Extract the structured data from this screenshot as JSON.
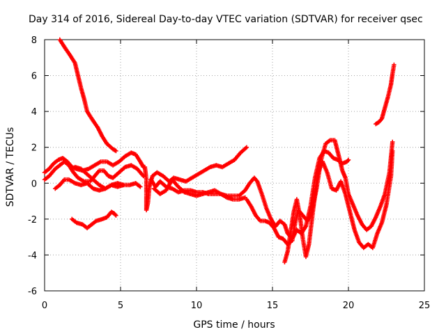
{
  "chart_data": {
    "type": "scatter",
    "title": "Day 314 of 2016, Sidereal Day-to-day VTEC variation (SDTVAR) for receiver qsec",
    "xlabel": "GPS time / hours",
    "ylabel": "SDTVAR / TECUs",
    "xlim": [
      0,
      25
    ],
    "ylim": [
      -6,
      8
    ],
    "xticks": [
      0,
      5,
      10,
      15,
      20,
      25
    ],
    "yticks": [
      -6,
      -4,
      -2,
      0,
      2,
      4,
      6,
      8
    ],
    "grid": true,
    "marker": "plus",
    "color": "#ff0000",
    "series": [
      {
        "name": "track-1",
        "points": [
          [
            1.0,
            8.0
          ],
          [
            1.3,
            7.6
          ],
          [
            1.7,
            7.1
          ],
          [
            2.0,
            6.7
          ],
          [
            2.2,
            6.0
          ],
          [
            2.4,
            5.3
          ],
          [
            2.6,
            4.7
          ],
          [
            2.8,
            4.0
          ],
          [
            3.1,
            3.6
          ],
          [
            3.5,
            3.1
          ],
          [
            3.8,
            2.6
          ],
          [
            4.1,
            2.2
          ],
          [
            4.5,
            1.9
          ],
          [
            4.7,
            1.8
          ]
        ]
      },
      {
        "name": "track-2",
        "points": [
          [
            0.0,
            0.6
          ],
          [
            0.3,
            0.8
          ],
          [
            0.6,
            1.1
          ],
          [
            0.9,
            1.3
          ],
          [
            1.2,
            1.4
          ],
          [
            1.5,
            1.2
          ],
          [
            1.8,
            0.9
          ],
          [
            2.1,
            0.8
          ],
          [
            2.5,
            0.7
          ],
          [
            2.9,
            0.8
          ],
          [
            3.3,
            1.0
          ],
          [
            3.7,
            1.2
          ],
          [
            4.1,
            1.2
          ],
          [
            4.5,
            1.0
          ],
          [
            4.9,
            1.2
          ],
          [
            5.3,
            1.5
          ],
          [
            5.7,
            1.7
          ],
          [
            6.0,
            1.6
          ],
          [
            6.3,
            1.2
          ],
          [
            6.5,
            0.9
          ]
        ]
      },
      {
        "name": "track-3",
        "points": [
          [
            0.0,
            0.2
          ],
          [
            0.3,
            0.4
          ],
          [
            0.7,
            0.8
          ],
          [
            1.0,
            1.0
          ],
          [
            1.3,
            1.2
          ],
          [
            1.6,
            1.0
          ],
          [
            1.9,
            0.6
          ],
          [
            2.2,
            0.3
          ],
          [
            2.6,
            0.1
          ],
          [
            3.0,
            0.1
          ],
          [
            3.3,
            0.4
          ],
          [
            3.6,
            0.7
          ],
          [
            3.9,
            0.7
          ],
          [
            4.2,
            0.4
          ],
          [
            4.5,
            0.3
          ],
          [
            4.9,
            0.6
          ],
          [
            5.3,
            0.9
          ],
          [
            5.7,
            1.0
          ],
          [
            6.1,
            0.8
          ],
          [
            6.5,
            0.4
          ]
        ]
      },
      {
        "name": "track-4",
        "points": [
          [
            0.7,
            -0.3
          ],
          [
            1.0,
            -0.1
          ],
          [
            1.3,
            0.2
          ],
          [
            1.6,
            0.2
          ],
          [
            2.0,
            0.0
          ],
          [
            2.4,
            -0.1
          ],
          [
            2.8,
            0.0
          ],
          [
            3.2,
            -0.3
          ],
          [
            3.6,
            -0.4
          ],
          [
            4.0,
            -0.3
          ],
          [
            4.4,
            -0.1
          ],
          [
            4.8,
            -0.2
          ],
          [
            5.2,
            -0.1
          ],
          [
            5.6,
            -0.1
          ],
          [
            6.0,
            0.0
          ],
          [
            6.3,
            -0.2
          ]
        ]
      },
      {
        "name": "track-5",
        "points": [
          [
            2.0,
            0.9
          ],
          [
            2.4,
            0.8
          ],
          [
            2.8,
            0.5
          ],
          [
            3.2,
            0.2
          ],
          [
            3.6,
            -0.1
          ],
          [
            4.0,
            -0.3
          ],
          [
            4.4,
            -0.1
          ],
          [
            4.8,
            0.0
          ],
          [
            5.2,
            -0.1
          ]
        ]
      },
      {
        "name": "track-6",
        "points": [
          [
            1.8,
            -2.0
          ],
          [
            2.1,
            -2.2
          ],
          [
            2.5,
            -2.3
          ],
          [
            2.8,
            -2.5
          ],
          [
            3.1,
            -2.3
          ],
          [
            3.4,
            -2.1
          ],
          [
            3.8,
            -2.0
          ],
          [
            4.1,
            -1.9
          ],
          [
            4.4,
            -1.6
          ],
          [
            4.6,
            -1.7
          ],
          [
            4.7,
            -1.8
          ]
        ]
      },
      {
        "name": "track-7",
        "points": [
          [
            6.6,
            0.9
          ],
          [
            6.7,
            0.2
          ],
          [
            6.7,
            -0.8
          ],
          [
            6.7,
            -1.5
          ],
          [
            6.8,
            -1.1
          ],
          [
            6.9,
            -0.2
          ],
          [
            7.1,
            0.4
          ],
          [
            7.4,
            0.6
          ],
          [
            7.8,
            0.4
          ],
          [
            8.2,
            0.1
          ],
          [
            8.5,
            0.3
          ],
          [
            8.9,
            0.2
          ],
          [
            9.3,
            0.1
          ],
          [
            9.7,
            0.3
          ],
          [
            10.1,
            0.5
          ],
          [
            10.5,
            0.7
          ],
          [
            10.9,
            0.9
          ],
          [
            11.3,
            1.0
          ],
          [
            11.7,
            0.9
          ],
          [
            12.1,
            1.1
          ],
          [
            12.5,
            1.3
          ],
          [
            12.9,
            1.7
          ],
          [
            13.3,
            2.0
          ]
        ]
      },
      {
        "name": "track-8",
        "points": [
          [
            7.0,
            0.2
          ],
          [
            7.3,
            -0.2
          ],
          [
            7.6,
            0.1
          ],
          [
            8.0,
            -0.2
          ],
          [
            8.4,
            -0.3
          ],
          [
            8.8,
            -0.5
          ],
          [
            9.2,
            -0.4
          ],
          [
            9.6,
            -0.4
          ],
          [
            10.0,
            -0.5
          ],
          [
            10.4,
            -0.5
          ],
          [
            10.8,
            -0.6
          ],
          [
            11.2,
            -0.6
          ],
          [
            11.6,
            -0.6
          ],
          [
            12.0,
            -0.8
          ],
          [
            12.4,
            -0.9
          ],
          [
            12.8,
            -0.9
          ],
          [
            13.2,
            -0.8
          ]
        ]
      },
      {
        "name": "track-9",
        "points": [
          [
            7.2,
            -0.3
          ],
          [
            7.6,
            -0.6
          ],
          [
            8.0,
            -0.4
          ],
          [
            8.4,
            0.2
          ],
          [
            8.8,
            -0.2
          ],
          [
            9.2,
            -0.5
          ],
          [
            9.6,
            -0.6
          ],
          [
            10.0,
            -0.7
          ],
          [
            10.4,
            -0.6
          ],
          [
            10.8,
            -0.5
          ],
          [
            11.2,
            -0.4
          ],
          [
            11.6,
            -0.6
          ],
          [
            12.0,
            -0.7
          ],
          [
            12.4,
            -0.7
          ],
          [
            12.8,
            -0.7
          ],
          [
            13.2,
            -0.4
          ],
          [
            13.5,
            0.0
          ],
          [
            13.8,
            0.3
          ],
          [
            14.0,
            0.1
          ],
          [
            14.3,
            -0.6
          ],
          [
            14.6,
            -1.4
          ],
          [
            14.9,
            -2.0
          ],
          [
            15.2,
            -2.4
          ],
          [
            15.5,
            -2.1
          ],
          [
            15.8,
            -2.3
          ],
          [
            16.0,
            -2.8
          ],
          [
            16.3,
            -3.1
          ],
          [
            16.6,
            -2.6
          ],
          [
            16.9,
            -2.8
          ],
          [
            17.2,
            -2.4
          ],
          [
            17.5,
            -1.3
          ],
          [
            17.8,
            0.3
          ],
          [
            18.1,
            1.4
          ],
          [
            18.4,
            1.8
          ],
          [
            18.7,
            1.7
          ],
          [
            19.0,
            1.4
          ],
          [
            19.3,
            1.3
          ],
          [
            19.6,
            1.1
          ],
          [
            19.9,
            1.2
          ],
          [
            20.0,
            1.3
          ]
        ]
      },
      {
        "name": "track-10",
        "points": [
          [
            13.3,
            -0.9
          ],
          [
            13.6,
            -1.3
          ],
          [
            13.9,
            -1.8
          ],
          [
            14.2,
            -2.1
          ],
          [
            14.5,
            -2.1
          ],
          [
            14.8,
            -2.2
          ],
          [
            15.1,
            -2.5
          ],
          [
            15.4,
            -3.0
          ],
          [
            15.7,
            -3.1
          ],
          [
            16.0,
            -3.4
          ],
          [
            16.3,
            -3.2
          ],
          [
            16.5,
            -2.2
          ],
          [
            16.7,
            -1.5
          ],
          [
            17.0,
            -1.8
          ],
          [
            17.3,
            -2.1
          ],
          [
            17.6,
            -1.6
          ],
          [
            17.9,
            -0.3
          ],
          [
            18.2,
            1.3
          ],
          [
            18.5,
            2.2
          ],
          [
            18.8,
            2.4
          ],
          [
            19.1,
            2.4
          ],
          [
            19.4,
            1.4
          ],
          [
            19.6,
            0.7
          ],
          [
            19.8,
            0.3
          ],
          [
            20.0,
            -0.6
          ],
          [
            20.3,
            -1.2
          ],
          [
            20.6,
            -1.8
          ],
          [
            20.9,
            -2.3
          ],
          [
            21.2,
            -2.6
          ],
          [
            21.5,
            -2.4
          ],
          [
            21.8,
            -1.9
          ],
          [
            22.1,
            -1.3
          ],
          [
            22.4,
            -0.6
          ],
          [
            22.7,
            0.6
          ],
          [
            22.9,
            2.3
          ]
        ]
      },
      {
        "name": "track-11",
        "points": [
          [
            15.8,
            -4.4
          ],
          [
            16.0,
            -3.8
          ],
          [
            16.2,
            -2.7
          ],
          [
            16.4,
            -1.6
          ],
          [
            16.6,
            -0.9
          ],
          [
            16.8,
            -1.8
          ],
          [
            17.0,
            -3.1
          ],
          [
            17.2,
            -4.1
          ],
          [
            17.4,
            -3.4
          ],
          [
            17.6,
            -2.0
          ],
          [
            17.8,
            -0.6
          ],
          [
            18.0,
            0.6
          ],
          [
            18.3,
            1.2
          ],
          [
            18.6,
            0.6
          ],
          [
            18.9,
            -0.3
          ],
          [
            19.2,
            -0.4
          ],
          [
            19.5,
            0.1
          ],
          [
            19.8,
            -0.6
          ],
          [
            20.1,
            -1.6
          ],
          [
            20.4,
            -2.6
          ],
          [
            20.7,
            -3.3
          ],
          [
            21.0,
            -3.6
          ],
          [
            21.3,
            -3.4
          ],
          [
            21.6,
            -3.6
          ],
          [
            21.9,
            -2.8
          ],
          [
            22.2,
            -2.2
          ],
          [
            22.5,
            -1.2
          ],
          [
            22.8,
            0.4
          ],
          [
            22.9,
            1.8
          ]
        ]
      },
      {
        "name": "track-12",
        "points": [
          [
            21.8,
            3.3
          ],
          [
            22.0,
            3.4
          ],
          [
            22.2,
            3.6
          ],
          [
            22.4,
            4.2
          ],
          [
            22.6,
            4.8
          ],
          [
            22.8,
            5.5
          ],
          [
            22.9,
            6.1
          ],
          [
            23.0,
            6.6
          ]
        ]
      }
    ]
  }
}
